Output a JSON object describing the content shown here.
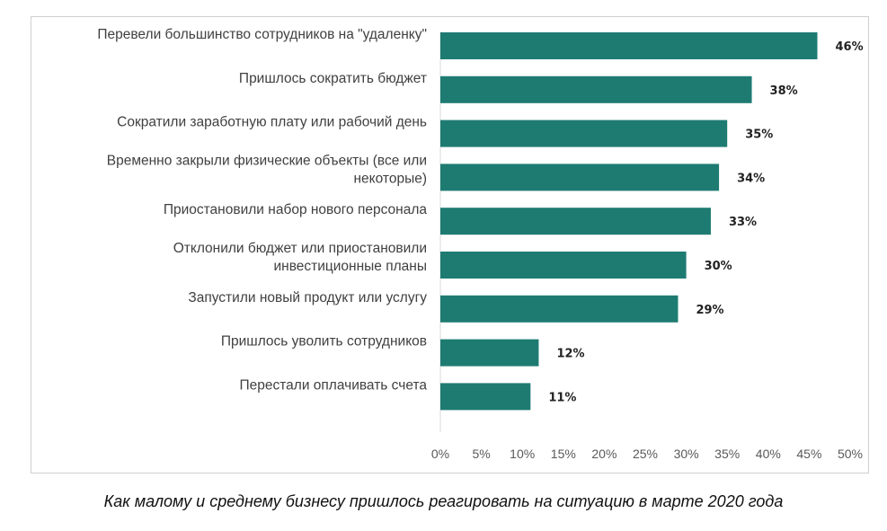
{
  "chart_data": {
    "type": "bar",
    "orientation": "horizontal",
    "categories": [
      [
        "Перевели большинство сотрудников на \"удаленку\""
      ],
      [
        "Пришлось сократить бюджет"
      ],
      [
        "Сократили заработную плату или рабочий день"
      ],
      [
        "Временно закрыли физические объекты (все или",
        "некоторые)"
      ],
      [
        "Приостановили набор нового персонала"
      ],
      [
        "Отклонили бюджет или приостановили",
        "инвестиционные планы"
      ],
      [
        "Запустили новый продукт или услугу"
      ],
      [
        "Пришлось уволить сотрудников"
      ],
      [
        "Перестали оплачивать счета"
      ]
    ],
    "values": [
      46,
      38,
      35,
      34,
      33,
      30,
      29,
      12,
      11
    ],
    "value_labels": [
      "46%",
      "38%",
      "35%",
      "34%",
      "33%",
      "30%",
      "29%",
      "12%",
      "11%"
    ],
    "xlim": [
      0,
      50
    ],
    "x_ticks": [
      0,
      5,
      10,
      15,
      20,
      25,
      30,
      35,
      40,
      45,
      50
    ],
    "x_tick_labels": [
      "0%",
      "5%",
      "10%",
      "15%",
      "20%",
      "25%",
      "30%",
      "35%",
      "40%",
      "45%",
      "50%"
    ],
    "bar_color": "#1e7b72",
    "grid": false,
    "legend": "none"
  },
  "caption": "Как малому и среднему бизнесу пришлось реагировать на ситуацию в марте 2020 года"
}
